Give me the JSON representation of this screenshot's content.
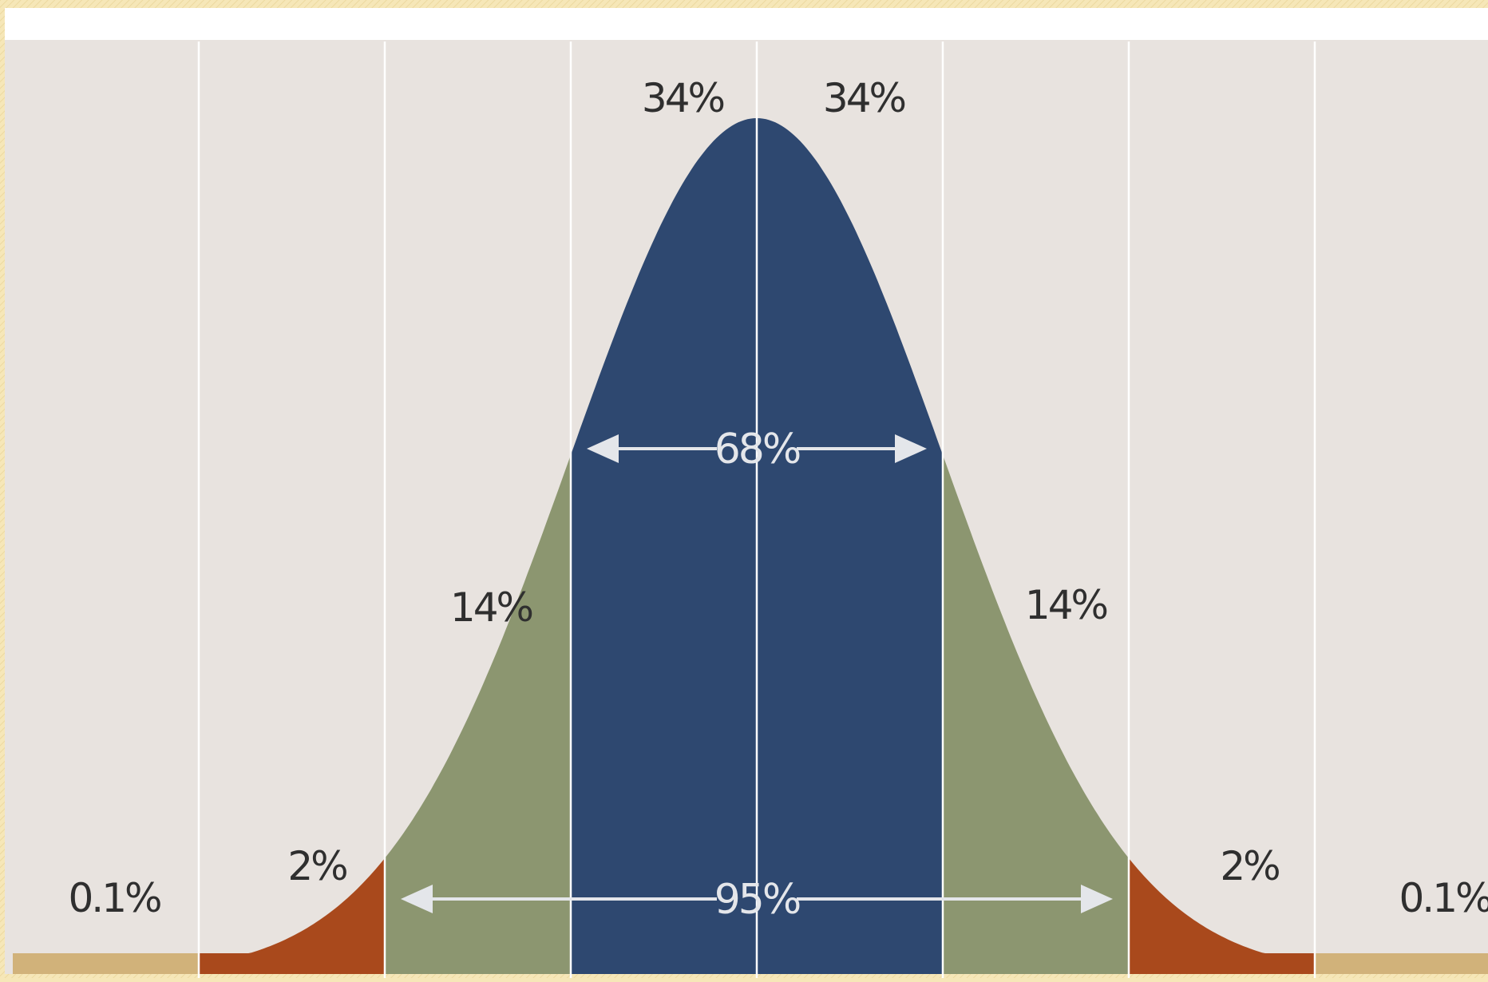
{
  "chart_data": {
    "type": "area",
    "title": "",
    "xlabel": "",
    "ylabel": "",
    "x_range_sd": [
      -4,
      4
    ],
    "gridlines_at_sd": [
      -4,
      -3,
      -2,
      -1,
      0,
      1,
      2,
      3,
      4
    ],
    "grid": true,
    "segments": [
      {
        "from_sd": -4,
        "to_sd": -3,
        "percent": 0.1,
        "label": "0.1%",
        "color": "#d1b27a"
      },
      {
        "from_sd": -3,
        "to_sd": -2,
        "percent": 2,
        "label": "2%",
        "color": "#a9491c"
      },
      {
        "from_sd": -2,
        "to_sd": -1,
        "percent": 14,
        "label": "14%",
        "color": "#8c9670"
      },
      {
        "from_sd": -1,
        "to_sd": 0,
        "percent": 34,
        "label": "34%",
        "color": "#2e4870"
      },
      {
        "from_sd": 0,
        "to_sd": 1,
        "percent": 34,
        "label": "34%",
        "color": "#2e4870"
      },
      {
        "from_sd": 1,
        "to_sd": 2,
        "percent": 14,
        "label": "14%",
        "color": "#8c9670"
      },
      {
        "from_sd": 2,
        "to_sd": 3,
        "percent": 2,
        "label": "2%",
        "color": "#a9491c"
      },
      {
        "from_sd": 3,
        "to_sd": 4,
        "percent": 0.1,
        "label": "0.1%",
        "color": "#d1b27a"
      }
    ],
    "ranges": [
      {
        "from_sd": -1,
        "to_sd": 1,
        "percent": 68,
        "label": "68%"
      },
      {
        "from_sd": -2,
        "to_sd": 2,
        "percent": 95,
        "label": "95%"
      }
    ],
    "colors": {
      "background": "#e8e3df",
      "gridline": "#ffffff",
      "frame": "#f6e7b8",
      "arrow": "#e4e6ea"
    }
  }
}
